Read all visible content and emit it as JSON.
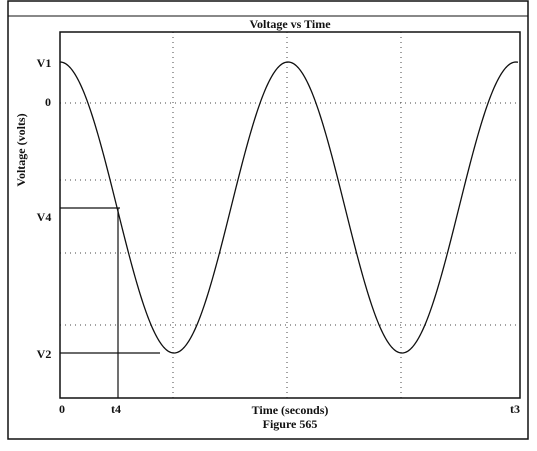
{
  "title": "Voltage vs Time",
  "y_axis_label": "Voltage (volts)",
  "x_axis_label": "Time (seconds)",
  "caption": "Figure 565",
  "y_labels": [
    "V1",
    "0",
    "V4",
    "V2"
  ],
  "x_labels": [
    "0",
    "t4",
    "t3"
  ]
}
